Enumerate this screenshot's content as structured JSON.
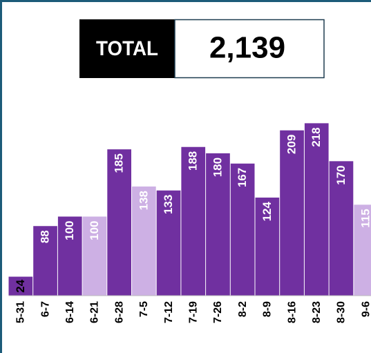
{
  "chart_data": {
    "type": "bar",
    "total_label": "TOTAL",
    "total": "2,139",
    "categories": [
      "5-31",
      "6-7",
      "6-14",
      "6-21",
      "6-28",
      "7-5",
      "7-12",
      "7-19",
      "7-26",
      "8-2",
      "8-9",
      "8-16",
      "8-23",
      "8-30",
      "9-6"
    ],
    "values": [
      24,
      88,
      100,
      100,
      185,
      138,
      133,
      188,
      180,
      167,
      124,
      209,
      218,
      170,
      115
    ],
    "colors": [
      "#7030a0",
      "#7030a0",
      "#7030a0",
      "#cdb0e4",
      "#7030a0",
      "#cdb0e4",
      "#7030a0",
      "#7030a0",
      "#7030a0",
      "#7030a0",
      "#7030a0",
      "#7030a0",
      "#7030a0",
      "#7030a0",
      "#cdb0e4"
    ]
  }
}
